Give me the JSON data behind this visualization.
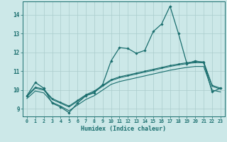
{
  "xlabel": "Humidex (Indice chaleur)",
  "background_color": "#cce8e8",
  "line_color": "#1a6e6e",
  "grid_color": "#aacccc",
  "xlim": [
    -0.5,
    23.5
  ],
  "ylim": [
    8.6,
    14.7
  ],
  "xtick_labels": [
    "0",
    "1",
    "2",
    "3",
    "4",
    "5",
    "6",
    "7",
    "8",
    "9",
    "10",
    "11",
    "12",
    "13",
    "14",
    "15",
    "16",
    "17",
    "18",
    "19",
    "20",
    "21",
    "22",
    "23"
  ],
  "ytick_vals": [
    9,
    10,
    11,
    12,
    13,
    14
  ],
  "line1_x": [
    0,
    1,
    2,
    3,
    4,
    5,
    6,
    7,
    8,
    9,
    10,
    11,
    12,
    13,
    14,
    15,
    16,
    17,
    18,
    19,
    20,
    21,
    22,
    23
  ],
  "line1_y": [
    9.7,
    10.4,
    10.1,
    9.3,
    9.1,
    8.8,
    9.3,
    9.7,
    9.85,
    10.3,
    11.55,
    12.25,
    12.2,
    11.95,
    12.1,
    13.1,
    13.5,
    14.45,
    13.0,
    11.4,
    11.55,
    11.45,
    9.9,
    10.1
  ],
  "line2_x": [
    0,
    1,
    2,
    3,
    4,
    5,
    6,
    7,
    8,
    9,
    10,
    11,
    12,
    13,
    14,
    15,
    16,
    17,
    18,
    19,
    20,
    21,
    22,
    23
  ],
  "line2_y": [
    9.7,
    10.15,
    10.05,
    9.55,
    9.35,
    9.15,
    9.45,
    9.75,
    9.95,
    10.25,
    10.55,
    10.7,
    10.8,
    10.9,
    11.0,
    11.1,
    11.2,
    11.3,
    11.38,
    11.45,
    11.5,
    11.5,
    10.25,
    10.1
  ],
  "line3_x": [
    0,
    1,
    2,
    3,
    4,
    5,
    6,
    7,
    8,
    9,
    10,
    11,
    12,
    13,
    14,
    15,
    16,
    17,
    18,
    19,
    20,
    21,
    22,
    23
  ],
  "line3_y": [
    9.65,
    10.1,
    10.0,
    9.5,
    9.3,
    9.1,
    9.4,
    9.7,
    9.9,
    10.2,
    10.5,
    10.65,
    10.75,
    10.85,
    10.95,
    11.05,
    11.15,
    11.25,
    11.33,
    11.4,
    11.45,
    11.45,
    10.2,
    10.05
  ],
  "line4_x": [
    0,
    1,
    2,
    3,
    4,
    5,
    6,
    7,
    8,
    9,
    10,
    11,
    12,
    13,
    14,
    15,
    16,
    17,
    18,
    19,
    20,
    21,
    22,
    23
  ],
  "line4_y": [
    9.55,
    9.95,
    9.85,
    9.35,
    9.15,
    8.9,
    9.2,
    9.5,
    9.7,
    10.0,
    10.3,
    10.45,
    10.55,
    10.65,
    10.75,
    10.85,
    10.95,
    11.05,
    11.13,
    11.2,
    11.25,
    11.25,
    10.0,
    9.9
  ]
}
